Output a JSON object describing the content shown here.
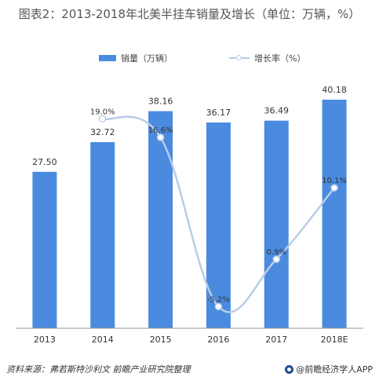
{
  "colors": {
    "bar": "#4a8be0",
    "line": "#b9cde6",
    "point_fill": "#ffffff",
    "axis": "#999999",
    "text": "#333333"
  },
  "chart_data": {
    "type": "bar",
    "title": "图表2：2013-2018年北美半挂车销量及增长（单位：万辆，%）",
    "categories": [
      "2013",
      "2014",
      "2015",
      "2016",
      "2017",
      "2018E"
    ],
    "series": [
      {
        "name": "销量（万辆）",
        "type": "bar",
        "axis": "left",
        "values": [
          27.5,
          32.72,
          38.16,
          36.17,
          36.49,
          40.18
        ],
        "labels": [
          "27.50",
          "32.72",
          "38.16",
          "36.17",
          "36.49",
          "40.18"
        ]
      },
      {
        "name": "增长率（%）",
        "type": "line",
        "axis": "right",
        "smooth": true,
        "values": [
          null,
          19.0,
          16.6,
          -5.2,
          0.9,
          10.1
        ],
        "labels": [
          "",
          "19.0%",
          "16.6%",
          "-5.2%",
          "0.9%",
          "10.1%"
        ]
      }
    ],
    "ylim_left": [
      0,
      45
    ],
    "ylim_right": [
      -8,
      25
    ],
    "grid": false,
    "legend_position": "top"
  },
  "footer": {
    "source": "资料来源：弗若斯特沙利文  前瞻产业研究院整理",
    "brand": "@前瞻经济学人APP"
  },
  "brand_icon": "qianzhan-logo-icon"
}
